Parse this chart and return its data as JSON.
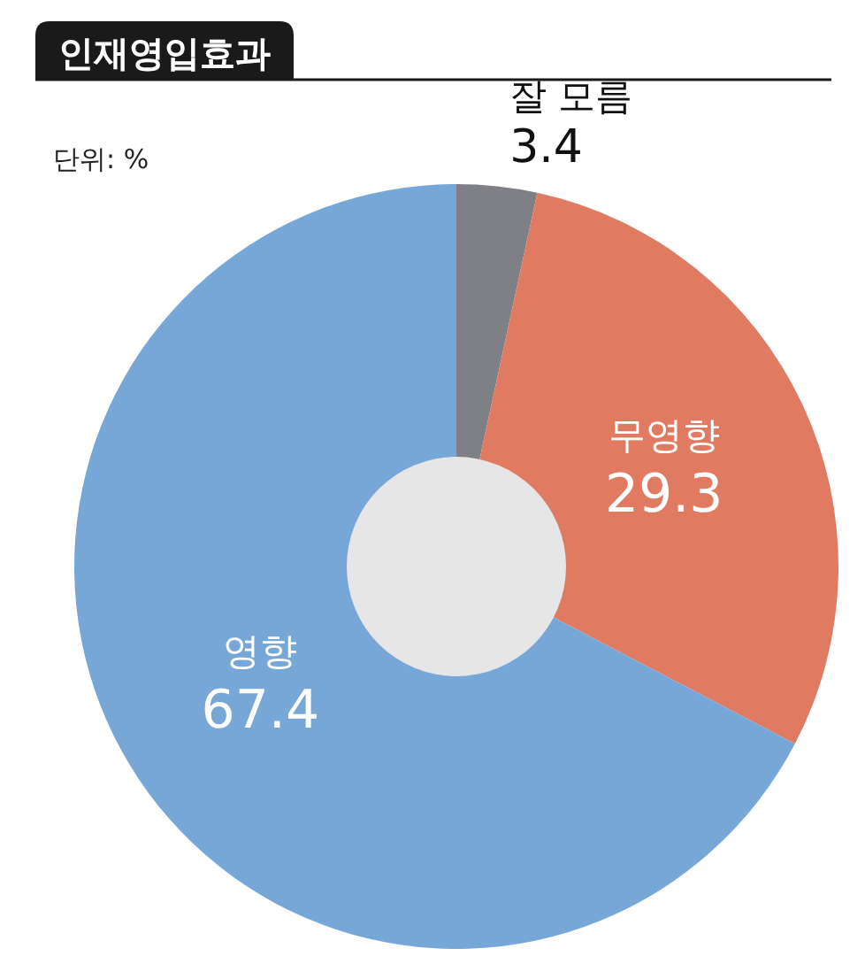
{
  "chart_data": {
    "type": "donut",
    "title": "인재영입효과",
    "annotations": [
      "단위: %"
    ],
    "categories": [
      "잘 모름",
      "무영향",
      "영향"
    ],
    "values": [
      3.4,
      29.3,
      67.4
    ],
    "colors": [
      "#7f8085",
      "#e07b62",
      "#76a7d6"
    ],
    "data_labels": true
  }
}
